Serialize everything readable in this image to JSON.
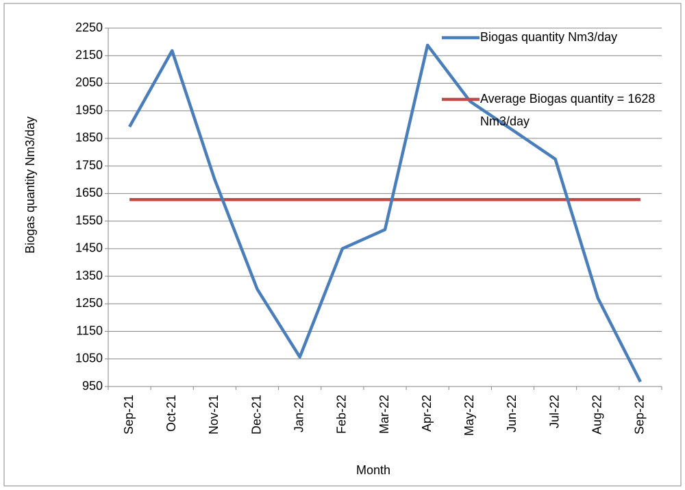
{
  "chart_data": {
    "type": "line",
    "x_label": "Month",
    "y_label": "Biogas quantity Nm3/day",
    "categories": [
      "Sep-21",
      "Oct-21",
      "Nov-21",
      "Dec-21",
      "Jan-22",
      "Feb-22",
      "Mar-22",
      "Apr-22",
      "May-22",
      "Jun-22",
      "Jul-22",
      "Aug-22",
      "Sep-22"
    ],
    "series": [
      {
        "name": "Biogas quantity Nm3/day",
        "color": "#4a7ebb",
        "values": [
          1892,
          2168,
          1701,
          1303,
          1057,
          1450,
          1519,
          2188,
          1984,
          1880,
          1775,
          1271,
          967
        ]
      },
      {
        "name": "Average Biogas quantity = 1628 Nm3/day",
        "color": "#be4b48",
        "values": [
          1628,
          1628,
          1628,
          1628,
          1628,
          1628,
          1628,
          1628,
          1628,
          1628,
          1628,
          1628,
          1628
        ]
      }
    ],
    "ylim": [
      950,
      2250
    ],
    "yticks": [
      950,
      1050,
      1150,
      1250,
      1350,
      1450,
      1550,
      1650,
      1750,
      1850,
      1950,
      2050,
      2150,
      2250
    ],
    "grid": true
  }
}
